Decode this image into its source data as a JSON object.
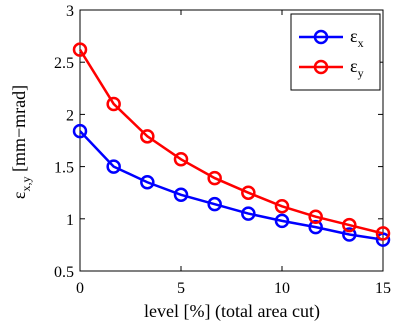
{
  "chart_data": {
    "type": "line",
    "x": [
      0,
      1.667,
      3.333,
      5,
      6.667,
      8.333,
      10,
      11.667,
      13.333,
      15
    ],
    "series": [
      {
        "name": "εx",
        "name_main": "ε",
        "name_sub": "x",
        "color": "#0000ff",
        "values": [
          1.84,
          1.5,
          1.35,
          1.23,
          1.14,
          1.05,
          0.98,
          0.92,
          0.85,
          0.8
        ]
      },
      {
        "name": "εy",
        "name_main": "ε",
        "name_sub": "y",
        "color": "#ff0000",
        "values": [
          2.62,
          2.1,
          1.79,
          1.57,
          1.39,
          1.25,
          1.12,
          1.02,
          0.94,
          0.86
        ]
      }
    ],
    "xlim": [
      0,
      15
    ],
    "ylim": [
      0.5,
      3
    ],
    "xticks": [
      "0",
      "5",
      "10",
      "15"
    ],
    "yticks": [
      "0.5",
      "1",
      "1.5",
      "2",
      "2.5",
      "3"
    ],
    "xlabel": "level [%]  (total area cut)",
    "ylabel_main": "ε",
    "ylabel_sub": "x,y",
    "ylabel_rest": " [mm−mrad]",
    "grid": false,
    "legend": "top-right",
    "marker": "circle-open"
  }
}
